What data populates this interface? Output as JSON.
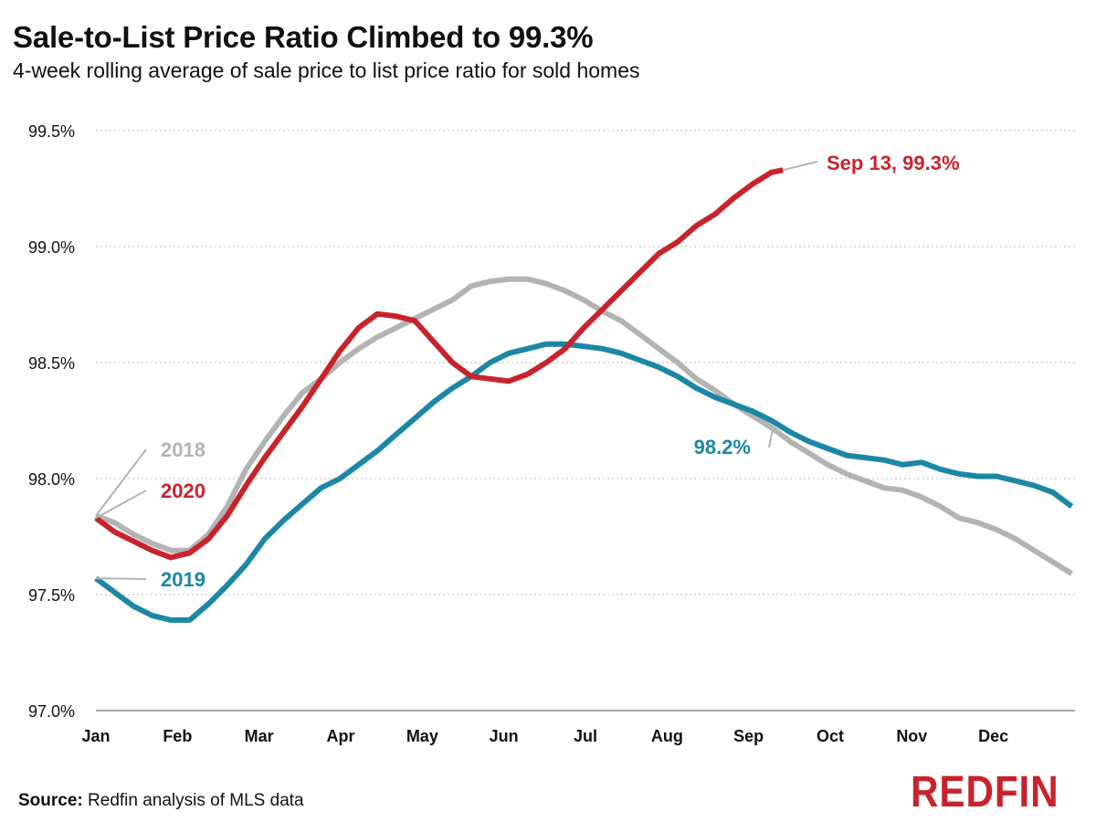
{
  "title": "Sale-to-List Price Ratio Climbed to 99.3%",
  "subtitle": "4-week rolling average of sale price to list price ratio for sold homes",
  "source": {
    "label": "Source:",
    "text": "Redfin analysis of MLS data"
  },
  "logo": "REDFIN",
  "colors": {
    "2018": "#b3b3b3",
    "2019": "#1b87a5",
    "2020": "#c8232c",
    "grid": "#c8c8c8",
    "axis": "#888888"
  },
  "chart_data": {
    "type": "line",
    "title": "Sale-to-List Price Ratio Climbed to 99.3%",
    "xlabel": "",
    "ylabel": "",
    "x_tick_labels": [
      "Jan",
      "Feb",
      "Mar",
      "Apr",
      "May",
      "Jun",
      "Jul",
      "Aug",
      "Sep",
      "Oct",
      "Nov",
      "Dec"
    ],
    "y_ticks": [
      97.0,
      97.5,
      98.0,
      98.5,
      99.0,
      99.5
    ],
    "y_tick_labels": [
      "97.0%",
      "97.5%",
      "98.0%",
      "98.5%",
      "99.0%",
      "99.5%"
    ],
    "xlim": [
      0,
      12
    ],
    "ylim": [
      97.0,
      99.5
    ],
    "x_unit": "month (0 = Jan 1)",
    "series": [
      {
        "name": "2018",
        "color": "#b3b3b3",
        "x": [
          0,
          0.23,
          0.46,
          0.69,
          0.92,
          1.15,
          1.38,
          1.61,
          1.84,
          2.07,
          2.3,
          2.53,
          2.76,
          2.99,
          3.22,
          3.45,
          3.68,
          3.91,
          4.14,
          4.37,
          4.6,
          4.83,
          5.06,
          5.29,
          5.52,
          5.75,
          5.98,
          6.21,
          6.44,
          6.67,
          6.9,
          7.13,
          7.36,
          7.59,
          7.82,
          8.05,
          8.28,
          8.51,
          8.74,
          8.97,
          9.2,
          9.43,
          9.66,
          9.89,
          10.12,
          10.35,
          10.58,
          10.81,
          11.04,
          11.27,
          11.5,
          11.73,
          11.96
        ],
        "values": [
          97.84,
          97.81,
          97.76,
          97.72,
          97.69,
          97.69,
          97.76,
          97.88,
          98.04,
          98.16,
          98.27,
          98.37,
          98.43,
          98.5,
          98.56,
          98.61,
          98.65,
          98.69,
          98.73,
          98.77,
          98.83,
          98.85,
          98.86,
          98.86,
          98.84,
          98.81,
          98.77,
          98.72,
          98.68,
          98.62,
          98.56,
          98.5,
          98.43,
          98.38,
          98.32,
          98.27,
          98.22,
          98.16,
          98.11,
          98.06,
          98.02,
          97.99,
          97.96,
          97.95,
          97.92,
          97.88,
          97.83,
          97.81,
          97.78,
          97.74,
          97.69,
          97.64,
          97.59
        ]
      },
      {
        "name": "2019",
        "color": "#1b87a5",
        "x": [
          0,
          0.23,
          0.46,
          0.69,
          0.92,
          1.15,
          1.38,
          1.61,
          1.84,
          2.07,
          2.3,
          2.53,
          2.76,
          2.99,
          3.22,
          3.45,
          3.68,
          3.91,
          4.14,
          4.37,
          4.6,
          4.83,
          5.06,
          5.29,
          5.52,
          5.75,
          5.98,
          6.21,
          6.44,
          6.67,
          6.9,
          7.13,
          7.36,
          7.59,
          7.82,
          8.05,
          8.28,
          8.51,
          8.74,
          8.97,
          9.2,
          9.43,
          9.66,
          9.89,
          10.12,
          10.35,
          10.58,
          10.81,
          11.04,
          11.27,
          11.5,
          11.73,
          11.96
        ],
        "values": [
          97.57,
          97.51,
          97.45,
          97.41,
          97.39,
          97.39,
          97.46,
          97.54,
          97.63,
          97.74,
          97.82,
          97.89,
          97.96,
          98.0,
          98.06,
          98.12,
          98.19,
          98.26,
          98.33,
          98.39,
          98.44,
          98.5,
          98.54,
          98.56,
          98.58,
          98.58,
          98.57,
          98.56,
          98.54,
          98.51,
          98.48,
          98.44,
          98.39,
          98.35,
          98.32,
          98.29,
          98.25,
          98.2,
          98.16,
          98.13,
          98.1,
          98.09,
          98.08,
          98.06,
          98.07,
          98.04,
          98.02,
          98.01,
          98.01,
          97.99,
          97.97,
          97.94,
          97.88
        ]
      },
      {
        "name": "2020",
        "color": "#c8232c",
        "x": [
          0,
          0.23,
          0.46,
          0.69,
          0.92,
          1.15,
          1.38,
          1.61,
          1.84,
          2.07,
          2.3,
          2.53,
          2.76,
          2.99,
          3.22,
          3.45,
          3.68,
          3.91,
          4.14,
          4.37,
          4.6,
          4.83,
          5.06,
          5.29,
          5.52,
          5.75,
          5.98,
          6.21,
          6.44,
          6.67,
          6.9,
          7.13,
          7.36,
          7.59,
          7.82,
          8.05,
          8.28,
          8.42
        ],
        "values": [
          97.83,
          97.77,
          97.73,
          97.69,
          97.66,
          97.68,
          97.74,
          97.84,
          97.97,
          98.09,
          98.2,
          98.31,
          98.43,
          98.55,
          98.65,
          98.71,
          98.7,
          98.68,
          98.59,
          98.5,
          98.44,
          98.43,
          98.42,
          98.45,
          98.5,
          98.56,
          98.65,
          98.73,
          98.81,
          98.89,
          98.97,
          99.02,
          99.09,
          99.14,
          99.21,
          99.27,
          99.32,
          99.33
        ]
      }
    ],
    "annotations": [
      {
        "text": "2018",
        "series": "2018",
        "x": 0,
        "y": 97.84
      },
      {
        "text": "2020",
        "series": "2020",
        "x": 0,
        "y": 97.83
      },
      {
        "text": "2019",
        "series": "2019",
        "x": 0,
        "y": 97.57
      },
      {
        "text": "98.2%",
        "series": "2019",
        "x": 8.3,
        "y": 98.22
      },
      {
        "text": "Sep 13, 99.3%",
        "series": "2020",
        "x": 8.42,
        "y": 99.33
      }
    ]
  }
}
